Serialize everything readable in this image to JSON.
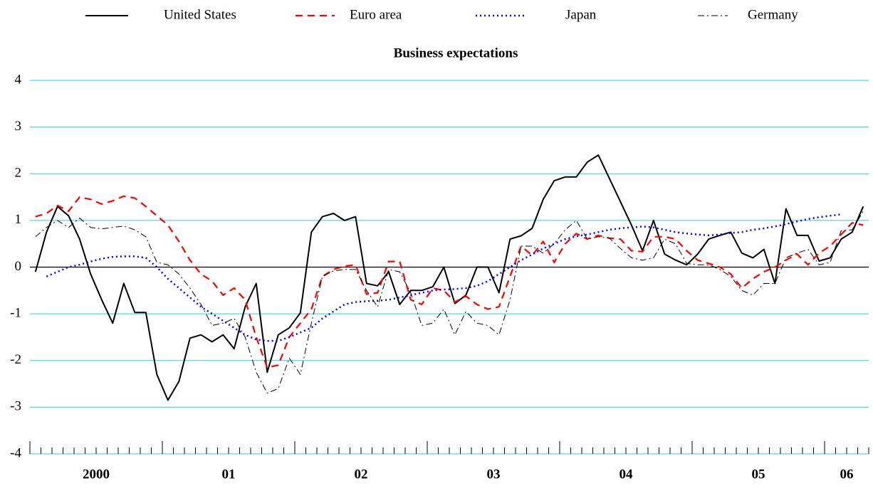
{
  "chart_data": {
    "type": "line",
    "title": "Business expectations",
    "categories": [
      null,
      null,
      null,
      null,
      null,
      null,
      "2000",
      null,
      null,
      null,
      null,
      null,
      null,
      null,
      null,
      null,
      null,
      null,
      "01",
      null,
      null,
      null,
      null,
      null,
      null,
      null,
      null,
      null,
      null,
      null,
      "02",
      null,
      null,
      null,
      null,
      null,
      null,
      null,
      null,
      null,
      null,
      null,
      "03",
      null,
      null,
      null,
      null,
      null,
      null,
      null,
      null,
      null,
      null,
      null,
      "04",
      null,
      null,
      null,
      null,
      null,
      null,
      null,
      null,
      null,
      null,
      null,
      "05",
      null,
      null,
      null,
      null,
      null,
      null,
      null,
      "06",
      null
    ],
    "ylim": [
      -4,
      4
    ],
    "yticks": [
      -4,
      -3,
      -2,
      -1,
      0,
      1,
      2,
      3,
      4
    ],
    "grid": true,
    "grid_color": "#33cccc",
    "series": [
      {
        "name": "United States",
        "color": "#000000",
        "dash": "solid",
        "values": [
          -0.1,
          0.75,
          1.3,
          1.1,
          0.6,
          -0.15,
          -0.7,
          -1.2,
          -0.35,
          -0.97,
          -0.97,
          -2.3,
          -2.85,
          -2.45,
          -1.52,
          -1.45,
          -1.6,
          -1.45,
          -1.75,
          -0.85,
          -0.35,
          -2.25,
          -1.45,
          -1.3,
          -0.98,
          0.75,
          1.08,
          1.15,
          1.0,
          1.08,
          -0.35,
          -0.4,
          -0.1,
          -0.8,
          -0.5,
          -0.5,
          -0.42,
          0.0,
          -0.78,
          -0.6,
          0.0,
          0.0,
          -0.55,
          0.6,
          0.67,
          0.83,
          1.45,
          1.85,
          1.93,
          1.93,
          2.25,
          2.4,
          1.9,
          1.4,
          0.9,
          0.35,
          1.0,
          0.28,
          0.15,
          0.05,
          0.28,
          0.6,
          0.68,
          0.75,
          0.3,
          0.2,
          0.38,
          -0.35,
          1.25,
          0.68,
          0.68,
          0.13,
          0.2,
          0.6,
          0.75,
          1.3
        ]
      },
      {
        "name": "Euro area",
        "color": "#ff0000",
        "dash": "dashed",
        "values": [
          1.08,
          1.15,
          1.32,
          1.2,
          1.5,
          1.45,
          1.35,
          1.42,
          1.52,
          1.48,
          1.3,
          1.1,
          0.9,
          0.55,
          0.15,
          -0.15,
          -0.3,
          -0.6,
          -0.45,
          -0.7,
          -1.5,
          -2.15,
          -2.1,
          -1.5,
          -1.2,
          -0.9,
          -0.2,
          -0.05,
          0.02,
          0.05,
          -0.58,
          -0.55,
          0.12,
          0.12,
          -0.7,
          -0.8,
          -0.45,
          -0.5,
          -0.75,
          -0.62,
          -0.8,
          -0.9,
          -0.85,
          -0.2,
          0.45,
          0.25,
          0.55,
          0.1,
          0.5,
          0.72,
          0.6,
          0.68,
          0.62,
          0.6,
          0.35,
          0.33,
          0.65,
          0.65,
          0.6,
          0.35,
          0.15,
          0.08,
          0.0,
          -0.15,
          -0.45,
          -0.25,
          -0.1,
          0.0,
          0.15,
          0.28,
          0.05,
          0.3,
          0.45,
          0.7,
          0.95,
          0.9
        ]
      },
      {
        "name": "Japan",
        "color": "#0000ff",
        "dash": "dotted",
        "values": [
          null,
          -0.2,
          -0.1,
          0.0,
          0.05,
          0.12,
          0.18,
          0.22,
          0.23,
          0.23,
          0.2,
          0.0,
          -0.25,
          -0.45,
          -0.65,
          -0.85,
          -1.0,
          -1.15,
          -1.3,
          -1.45,
          -1.55,
          -1.58,
          -1.58,
          -1.5,
          -1.4,
          -1.3,
          -1.1,
          -0.95,
          -0.8,
          -0.75,
          -0.73,
          -0.72,
          -0.7,
          -0.65,
          -0.6,
          -0.55,
          -0.5,
          -0.48,
          -0.47,
          -0.45,
          -0.4,
          -0.3,
          -0.15,
          0.0,
          0.15,
          0.27,
          0.4,
          0.5,
          0.6,
          0.66,
          0.7,
          0.75,
          0.8,
          0.83,
          0.85,
          0.87,
          0.85,
          0.8,
          0.75,
          0.72,
          0.7,
          0.68,
          0.7,
          0.73,
          0.75,
          0.8,
          0.83,
          0.87,
          0.92,
          0.98,
          1.03,
          1.07,
          1.1,
          1.13,
          null,
          null
        ]
      },
      {
        "name": "Germany",
        "color": "#000000",
        "dash": "dashdot",
        "values": [
          0.65,
          0.85,
          1.0,
          0.85,
          1.05,
          0.85,
          0.82,
          0.85,
          0.88,
          0.8,
          0.65,
          0.1,
          0.05,
          -0.15,
          -0.45,
          -0.8,
          -1.25,
          -1.2,
          -1.1,
          -1.5,
          -2.25,
          -2.7,
          -2.6,
          -1.95,
          -2.3,
          -1.2,
          -0.2,
          -0.08,
          -0.05,
          -0.05,
          -0.5,
          -0.85,
          -0.05,
          -0.1,
          -0.55,
          -1.25,
          -1.2,
          -0.9,
          -1.45,
          -0.95,
          -1.2,
          -1.25,
          -1.45,
          -0.7,
          0.45,
          0.45,
          0.3,
          0.5,
          0.8,
          1.0,
          0.6,
          0.65,
          0.62,
          0.4,
          0.2,
          0.15,
          0.2,
          0.6,
          0.5,
          0.08,
          0.05,
          0.05,
          -0.05,
          -0.2,
          -0.5,
          -0.6,
          -0.35,
          -0.35,
          0.2,
          0.3,
          0.38,
          0.05,
          0.1,
          0.78,
          0.8,
          1.2
        ]
      }
    ]
  }
}
